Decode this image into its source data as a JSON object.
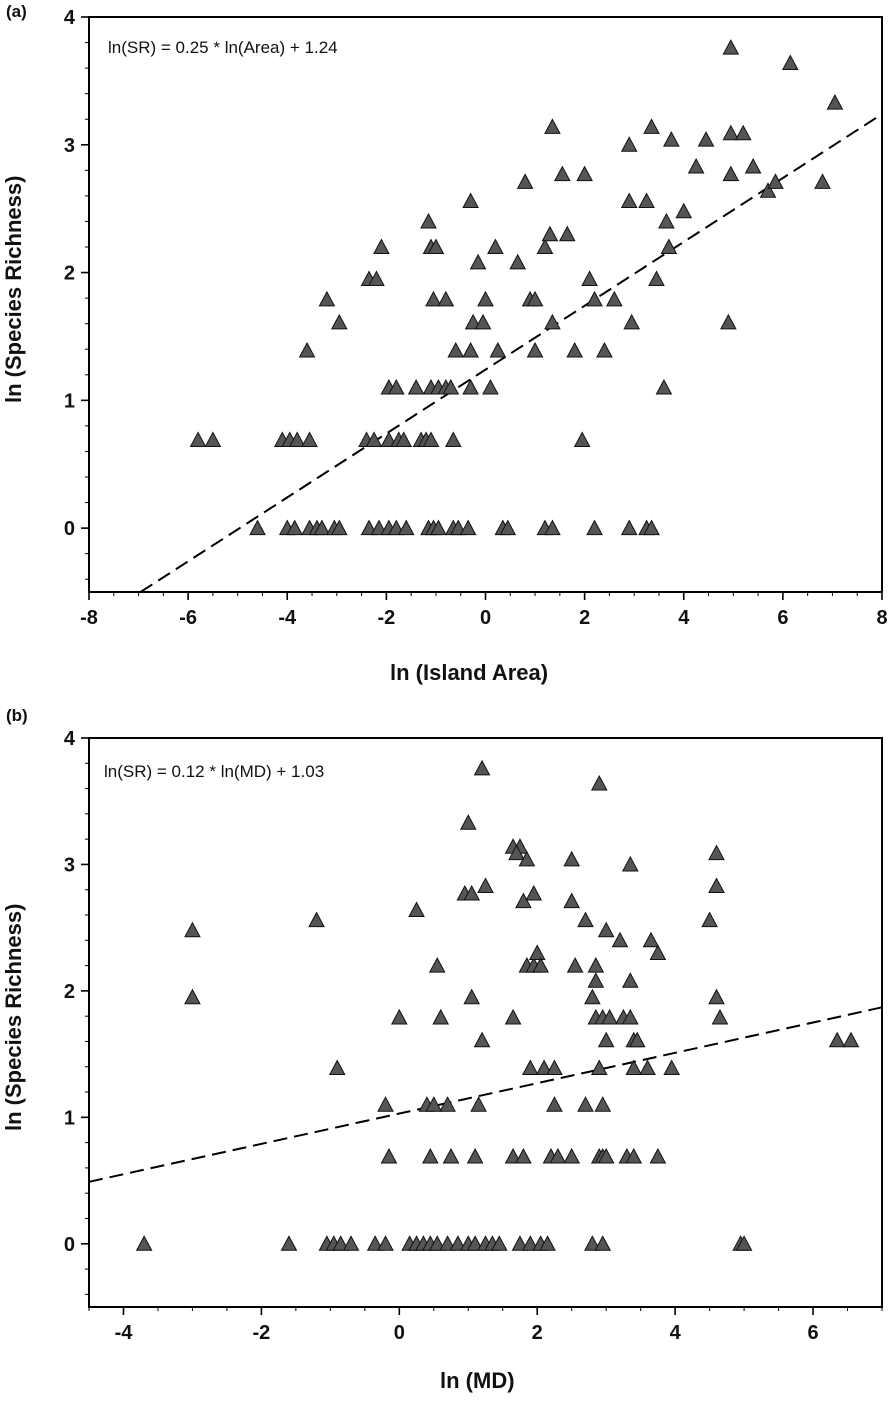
{
  "chart_data": [
    {
      "type": "scatter",
      "panel_label": "(a)",
      "xlabel": "ln (Island Area)",
      "ylabel": "ln (Species Richness)",
      "equation": "ln(SR) = 0.25 * ln(Area) + 1.24",
      "xlim": [
        -8,
        8
      ],
      "ylim": [
        -0.5,
        4
      ],
      "xticks": [
        -8,
        -6,
        -4,
        -2,
        0,
        2,
        4,
        6,
        8
      ],
      "xtick_labels": [
        "-8",
        "-6",
        "-4",
        "-2",
        "0",
        "2",
        "4",
        "6",
        "8"
      ],
      "yticks": [
        0,
        1,
        2,
        3,
        4
      ],
      "ytick_labels": [
        "0",
        "1",
        "2",
        "3",
        "4"
      ],
      "regression": {
        "slope": 0.25,
        "intercept": 1.24,
        "style": "dashed"
      },
      "marker": "triangle",
      "marker_color": "#555555",
      "points": [
        [
          -5.8,
          0.69
        ],
        [
          -5.5,
          0.69
        ],
        [
          -4.1,
          0.69
        ],
        [
          -3.95,
          0.69
        ],
        [
          -3.8,
          0.69
        ],
        [
          -3.55,
          0.69
        ],
        [
          -2.4,
          0.69
        ],
        [
          -2.25,
          0.69
        ],
        [
          -1.95,
          0.69
        ],
        [
          -1.75,
          0.69
        ],
        [
          -1.65,
          0.69
        ],
        [
          -1.3,
          0.69
        ],
        [
          -1.2,
          0.69
        ],
        [
          -1.1,
          0.69
        ],
        [
          -0.65,
          0.69
        ],
        [
          1.95,
          0.69
        ],
        [
          -4.6,
          0
        ],
        [
          -4.0,
          0
        ],
        [
          -3.85,
          0
        ],
        [
          -3.55,
          0
        ],
        [
          -3.4,
          0
        ],
        [
          -3.3,
          0
        ],
        [
          -3.05,
          0
        ],
        [
          -2.95,
          0
        ],
        [
          -2.35,
          0
        ],
        [
          -2.15,
          0
        ],
        [
          -1.95,
          0
        ],
        [
          -1.8,
          0
        ],
        [
          -1.6,
          0
        ],
        [
          -1.15,
          0
        ],
        [
          -1.05,
          0
        ],
        [
          -0.95,
          0
        ],
        [
          -0.65,
          0
        ],
        [
          -0.55,
          0
        ],
        [
          -0.35,
          0
        ],
        [
          0.35,
          0
        ],
        [
          0.45,
          0
        ],
        [
          1.2,
          0
        ],
        [
          1.35,
          0
        ],
        [
          2.2,
          0
        ],
        [
          2.9,
          0
        ],
        [
          3.25,
          0
        ],
        [
          3.35,
          0
        ],
        [
          -3.6,
          1.39
        ],
        [
          -1.95,
          1.1
        ],
        [
          -1.8,
          1.1
        ],
        [
          -1.4,
          1.1
        ],
        [
          -1.1,
          1.1
        ],
        [
          -0.95,
          1.1
        ],
        [
          -0.8,
          1.1
        ],
        [
          -0.7,
          1.1
        ],
        [
          -0.3,
          1.1
        ],
        [
          0.1,
          1.1
        ],
        [
          -0.6,
          1.39
        ],
        [
          -0.3,
          1.39
        ],
        [
          0.25,
          1.39
        ],
        [
          1.0,
          1.39
        ],
        [
          1.8,
          1.39
        ],
        [
          2.4,
          1.39
        ],
        [
          3.6,
          1.1
        ],
        [
          -3.2,
          1.79
        ],
        [
          -2.95,
          1.61
        ],
        [
          -1.05,
          1.79
        ],
        [
          -0.8,
          1.79
        ],
        [
          -0.25,
          1.61
        ],
        [
          -0.05,
          1.61
        ],
        [
          0.0,
          1.79
        ],
        [
          0.9,
          1.79
        ],
        [
          1.0,
          1.79
        ],
        [
          1.35,
          1.61
        ],
        [
          2.2,
          1.79
        ],
        [
          2.6,
          1.79
        ],
        [
          2.95,
          1.61
        ],
        [
          4.9,
          1.61
        ],
        [
          -2.35,
          1.95
        ],
        [
          -2.2,
          1.95
        ],
        [
          -2.1,
          2.2
        ],
        [
          -1.15,
          2.4
        ],
        [
          -1.1,
          2.2
        ],
        [
          -1.0,
          2.2
        ],
        [
          -0.3,
          2.56
        ],
        [
          -0.15,
          2.08
        ],
        [
          0.2,
          2.2
        ],
        [
          0.65,
          2.08
        ],
        [
          0.8,
          2.71
        ],
        [
          1.2,
          2.2
        ],
        [
          1.3,
          2.3
        ],
        [
          1.55,
          2.77
        ],
        [
          1.65,
          2.3
        ],
        [
          2.0,
          2.77
        ],
        [
          2.1,
          1.95
        ],
        [
          2.9,
          3.0
        ],
        [
          2.9,
          2.56
        ],
        [
          3.25,
          2.56
        ],
        [
          3.45,
          1.95
        ],
        [
          3.7,
          2.2
        ],
        [
          3.65,
          2.4
        ],
        [
          3.75,
          3.04
        ],
        [
          4.0,
          2.48
        ],
        [
          1.35,
          3.14
        ],
        [
          3.35,
          3.14
        ],
        [
          4.25,
          2.83
        ],
        [
          4.45,
          3.04
        ],
        [
          4.95,
          3.09
        ],
        [
          4.95,
          2.77
        ],
        [
          5.2,
          3.09
        ],
        [
          5.4,
          2.83
        ],
        [
          5.7,
          2.64
        ],
        [
          5.85,
          2.71
        ],
        [
          6.8,
          2.71
        ],
        [
          4.95,
          3.76
        ],
        [
          6.15,
          3.64
        ],
        [
          7.05,
          3.33
        ]
      ]
    },
    {
      "type": "scatter",
      "panel_label": "(b)",
      "xlabel": "ln (MD)",
      "ylabel": "ln (Species Richness)",
      "equation": "ln(SR) = 0.12 * ln(MD) + 1.03",
      "xlim": [
        -4.5,
        7
      ],
      "ylim": [
        -0.5,
        4
      ],
      "xticks": [
        -4,
        -2,
        0,
        2,
        4,
        6
      ],
      "xtick_labels": [
        "-4",
        "-2",
        "0",
        "2",
        "4",
        "6"
      ],
      "yticks": [
        0,
        1,
        2,
        3,
        4
      ],
      "ytick_labels": [
        "0",
        "1",
        "2",
        "3",
        "4"
      ],
      "regression": {
        "slope": 0.12,
        "intercept": 1.03,
        "style": "dashed"
      },
      "marker": "triangle",
      "marker_color": "#555555",
      "points": [
        [
          -3.7,
          0
        ],
        [
          -1.6,
          0
        ],
        [
          -1.05,
          0
        ],
        [
          -0.95,
          0
        ],
        [
          -0.85,
          0
        ],
        [
          -0.7,
          0
        ],
        [
          -0.35,
          0
        ],
        [
          -0.2,
          0
        ],
        [
          0.15,
          0
        ],
        [
          0.25,
          0
        ],
        [
          0.35,
          0
        ],
        [
          0.45,
          0
        ],
        [
          0.55,
          0
        ],
        [
          0.7,
          0
        ],
        [
          0.85,
          0
        ],
        [
          1.0,
          0
        ],
        [
          1.1,
          0
        ],
        [
          1.25,
          0
        ],
        [
          1.35,
          0
        ],
        [
          1.45,
          0
        ],
        [
          1.75,
          0
        ],
        [
          1.9,
          0
        ],
        [
          2.05,
          0
        ],
        [
          2.15,
          0
        ],
        [
          2.8,
          0
        ],
        [
          2.95,
          0
        ],
        [
          4.95,
          0
        ],
        [
          5.0,
          0
        ],
        [
          -0.15,
          0.69
        ],
        [
          0.45,
          0.69
        ],
        [
          0.75,
          0.69
        ],
        [
          1.1,
          0.69
        ],
        [
          1.65,
          0.69
        ],
        [
          1.8,
          0.69
        ],
        [
          2.2,
          0.69
        ],
        [
          2.3,
          0.69
        ],
        [
          2.5,
          0.69
        ],
        [
          2.9,
          0.69
        ],
        [
          2.95,
          0.69
        ],
        [
          3.0,
          0.69
        ],
        [
          3.3,
          0.69
        ],
        [
          3.4,
          0.69
        ],
        [
          3.75,
          0.69
        ],
        [
          -0.2,
          1.1
        ],
        [
          0.4,
          1.1
        ],
        [
          0.5,
          1.1
        ],
        [
          0.7,
          1.1
        ],
        [
          1.15,
          1.1
        ],
        [
          2.25,
          1.1
        ],
        [
          2.7,
          1.1
        ],
        [
          2.95,
          1.1
        ],
        [
          -0.9,
          1.39
        ],
        [
          1.9,
          1.39
        ],
        [
          2.1,
          1.39
        ],
        [
          2.25,
          1.39
        ],
        [
          2.9,
          1.39
        ],
        [
          3.4,
          1.39
        ],
        [
          3.6,
          1.39
        ],
        [
          3.95,
          1.39
        ],
        [
          0.0,
          1.79
        ],
        [
          0.6,
          1.79
        ],
        [
          1.2,
          1.61
        ],
        [
          1.65,
          1.79
        ],
        [
          2.85,
          1.79
        ],
        [
          2.95,
          1.79
        ],
        [
          3.0,
          1.61
        ],
        [
          3.05,
          1.79
        ],
        [
          3.25,
          1.79
        ],
        [
          3.35,
          1.79
        ],
        [
          3.4,
          1.61
        ],
        [
          3.45,
          1.61
        ],
        [
          4.65,
          1.79
        ],
        [
          6.35,
          1.61
        ],
        [
          6.55,
          1.61
        ],
        [
          -3.0,
          2.48
        ],
        [
          -3.0,
          1.95
        ],
        [
          -1.2,
          2.56
        ],
        [
          0.25,
          2.64
        ],
        [
          0.55,
          2.2
        ],
        [
          1.05,
          1.95
        ],
        [
          1.85,
          2.2
        ],
        [
          1.95,
          2.2
        ],
        [
          2.0,
          2.3
        ],
        [
          2.05,
          2.2
        ],
        [
          2.55,
          2.2
        ],
        [
          2.7,
          2.56
        ],
        [
          2.8,
          1.95
        ],
        [
          2.85,
          2.2
        ],
        [
          2.85,
          2.08
        ],
        [
          3.35,
          2.08
        ],
        [
          3.2,
          2.4
        ],
        [
          3.65,
          2.4
        ],
        [
          3.75,
          2.3
        ],
        [
          4.6,
          1.95
        ],
        [
          0.95,
          2.77
        ],
        [
          1.05,
          2.77
        ],
        [
          1.25,
          2.83
        ],
        [
          1.8,
          2.71
        ],
        [
          1.95,
          2.77
        ],
        [
          2.5,
          2.71
        ],
        [
          3.0,
          2.48
        ],
        [
          4.5,
          2.56
        ],
        [
          4.6,
          2.83
        ],
        [
          1.0,
          3.33
        ],
        [
          1.65,
          3.14
        ],
        [
          1.75,
          3.14
        ],
        [
          1.7,
          3.09
        ],
        [
          1.85,
          3.04
        ],
        [
          2.5,
          3.04
        ],
        [
          3.35,
          3.0
        ],
        [
          4.6,
          3.09
        ],
        [
          1.2,
          3.76
        ],
        [
          2.9,
          3.64
        ]
      ]
    }
  ]
}
